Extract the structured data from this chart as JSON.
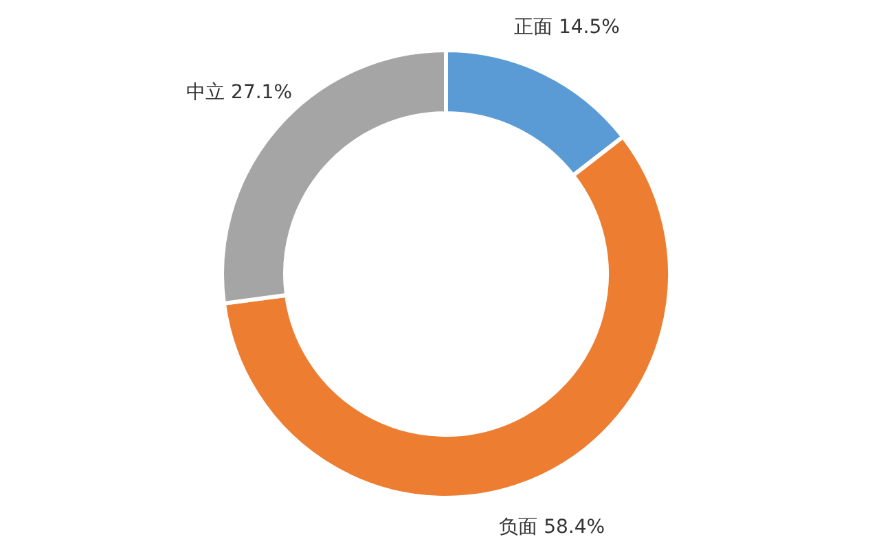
{
  "chart_data": {
    "type": "donut",
    "categories": [
      "正面",
      "负面",
      "中立"
    ],
    "values": [
      14.5,
      58.4,
      27.1
    ],
    "value_labels": [
      "14.5%",
      "58.4%",
      "27.1%"
    ],
    "colors": [
      "#5b9bd5",
      "#ed7d31",
      "#a5a5a5"
    ]
  }
}
